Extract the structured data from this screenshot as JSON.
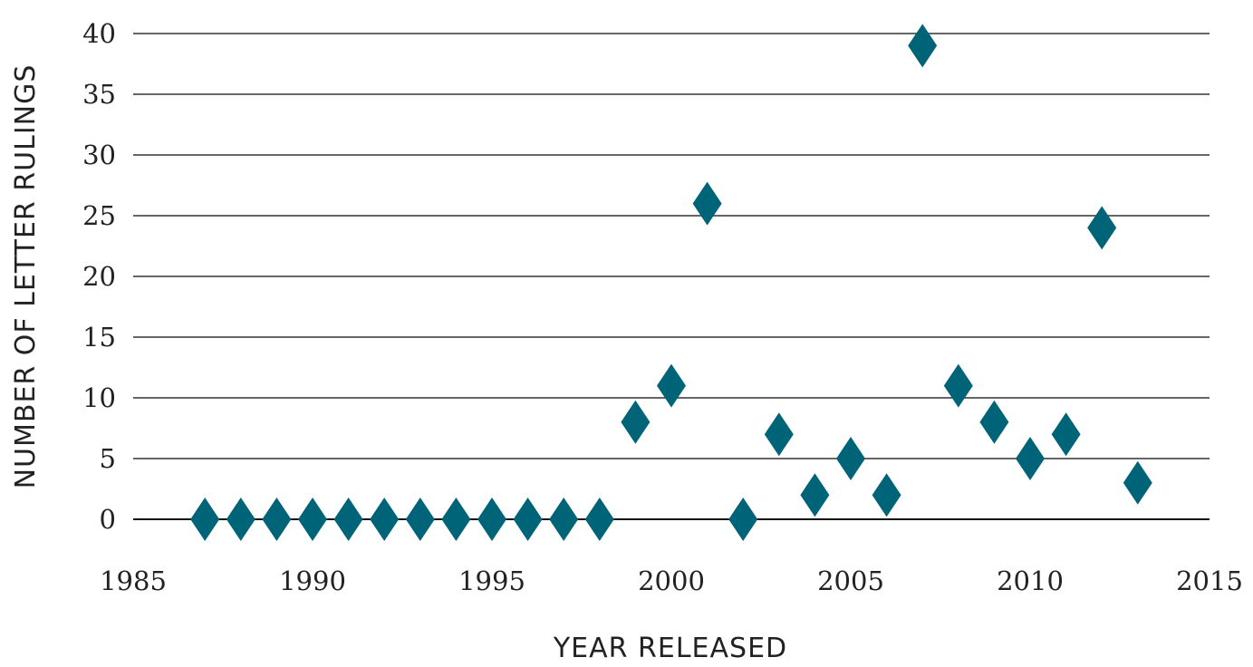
{
  "chart_data": {
    "type": "scatter",
    "xlabel": "YEAR RELEASED",
    "ylabel": "NUMBER OF LETTER RULINGS",
    "xlim": [
      1985,
      2015
    ],
    "ylim": [
      0,
      40
    ],
    "xticks": [
      1985,
      1990,
      1995,
      2000,
      2005,
      2010,
      2015
    ],
    "yticks": [
      0,
      5,
      10,
      15,
      20,
      25,
      30,
      35,
      40
    ],
    "grid": "horizontal",
    "marker": "diamond",
    "marker_color": "#006478",
    "x": [
      1987,
      1988,
      1989,
      1990,
      1991,
      1992,
      1993,
      1994,
      1995,
      1996,
      1997,
      1998,
      1999,
      2000,
      2001,
      2002,
      2003,
      2004,
      2005,
      2006,
      2007,
      2008,
      2009,
      2010,
      2011,
      2012,
      2013
    ],
    "y": [
      0,
      0,
      0,
      0,
      0,
      0,
      0,
      0,
      0,
      0,
      0,
      0,
      8,
      11,
      26,
      0,
      7,
      2,
      5,
      2,
      39,
      11,
      8,
      5,
      7,
      24,
      3
    ]
  }
}
